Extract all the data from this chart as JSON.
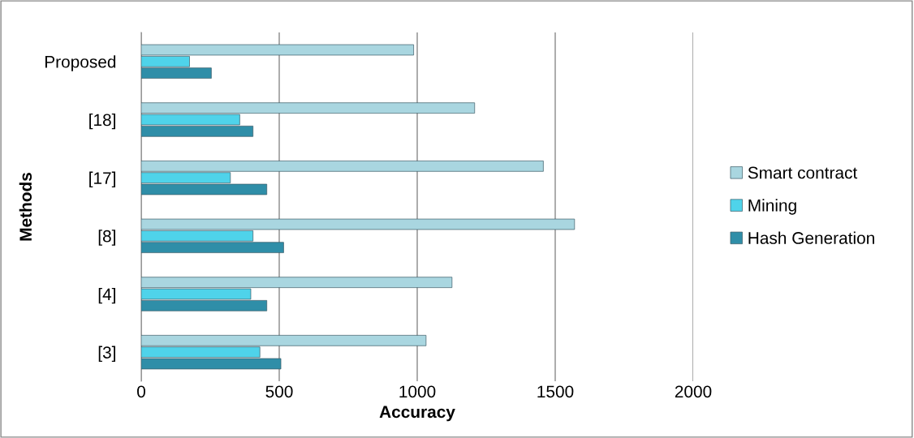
{
  "chart_data": {
    "type": "bar",
    "orientation": "horizontal",
    "xlabel": "Accuracy",
    "ylabel": "Methods",
    "categories": [
      "Proposed",
      "[18]",
      "[17]",
      "[8]",
      "[4]",
      "[3]"
    ],
    "series": [
      {
        "name": "Hash Generation",
        "color": "#2f8ea8",
        "values": [
          254,
          405,
          455,
          516,
          455,
          506
        ]
      },
      {
        "name": "Mining",
        "color": "#4fd3ea",
        "values": [
          175,
          357,
          323,
          405,
          397,
          430
        ]
      },
      {
        "name": "Smart contract",
        "color": "#a9d6e0",
        "values": [
          987,
          1208,
          1457,
          1570,
          1126,
          1032
        ]
      }
    ],
    "xlim": [
      0,
      2000
    ],
    "xticks": [
      0,
      500,
      1000,
      1500,
      2000
    ],
    "grid": "x",
    "legend": "right"
  }
}
